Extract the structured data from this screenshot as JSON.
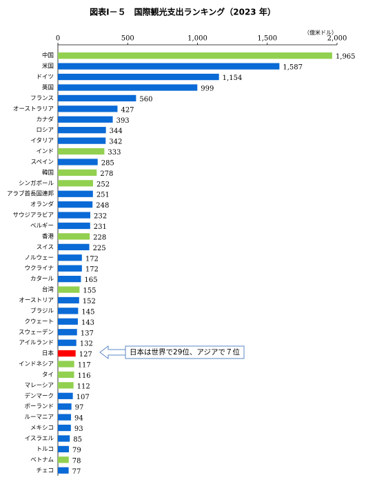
{
  "chart_data": {
    "type": "hbar",
    "title": "図表Ⅰ－５　国際観光支出ランキング（2023 年）",
    "unit_label": "（億米ドル）",
    "annotation": "日本は世界で29位、アジアで７位",
    "categories": [
      "中国",
      "米国",
      "ドイツ",
      "英国",
      "フランス",
      "オーストラリア",
      "カナダ",
      "ロシア",
      "イタリア",
      "インド",
      "スペイン",
      "韓国",
      "シンガポール",
      "アラブ首長国連邦",
      "オランダ",
      "サウジアラビア",
      "ベルギー",
      "香港",
      "スイス",
      "ノルウェー",
      "ウクライナ",
      "カタール",
      "台湾",
      "オーストリア",
      "ブラジル",
      "クウェート",
      "スウェーデン",
      "アイルランド",
      "日本",
      "インドネシア",
      "タイ",
      "マレーシア",
      "デンマーク",
      "ポーランド",
      "ルーマニア",
      "メキシコ",
      "イスラエル",
      "トルコ",
      "ベトナム",
      "チェコ"
    ],
    "values": [
      1965,
      1587,
      1154,
      999,
      560,
      427,
      393,
      344,
      342,
      333,
      285,
      278,
      252,
      251,
      248,
      232,
      231,
      228,
      225,
      172,
      172,
      165,
      155,
      152,
      145,
      143,
      137,
      132,
      127,
      117,
      116,
      112,
      107,
      97,
      94,
      93,
      85,
      79,
      78,
      77
    ],
    "value_labels": [
      "1,965",
      "1,587",
      "1,154",
      "999",
      "560",
      "427",
      "393",
      "344",
      "342",
      "333",
      "285",
      "278",
      "252",
      "251",
      "248",
      "232",
      "231",
      "228",
      "225",
      "172",
      "172",
      "165",
      "155",
      "152",
      "145",
      "143",
      "137",
      "132",
      "127",
      "117",
      "116",
      "112",
      "107",
      "97",
      "94",
      "93",
      "85",
      "79",
      "78",
      "77"
    ],
    "colors": [
      "#92d050",
      "#0a6ad6",
      "#0a6ad6",
      "#0a6ad6",
      "#0a6ad6",
      "#0a6ad6",
      "#0a6ad6",
      "#0a6ad6",
      "#0a6ad6",
      "#92d050",
      "#0a6ad6",
      "#92d050",
      "#92d050",
      "#0a6ad6",
      "#0a6ad6",
      "#0a6ad6",
      "#0a6ad6",
      "#92d050",
      "#0a6ad6",
      "#0a6ad6",
      "#0a6ad6",
      "#0a6ad6",
      "#92d050",
      "#0a6ad6",
      "#0a6ad6",
      "#0a6ad6",
      "#0a6ad6",
      "#0a6ad6",
      "#ff0000",
      "#92d050",
      "#92d050",
      "#92d050",
      "#0a6ad6",
      "#0a6ad6",
      "#0a6ad6",
      "#0a6ad6",
      "#0a6ad6",
      "#0a6ad6",
      "#92d050",
      "#0a6ad6"
    ],
    "xlim": [
      0,
      2000
    ],
    "xticks": [
      0,
      500,
      {
        "value": 1000,
        "label": "1,000"
      },
      {
        "value": 1500,
        "label": "1,500"
      },
      {
        "value": 2000,
        "label": "2,000"
      }
    ]
  }
}
